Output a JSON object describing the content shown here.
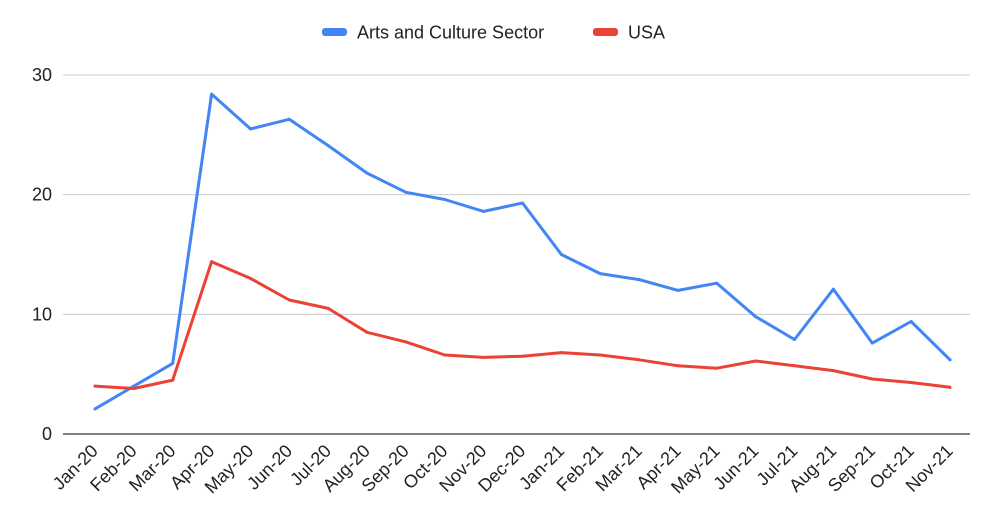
{
  "chart_data": {
    "type": "line",
    "categories": [
      "Jan-20",
      "Feb-20",
      "Mar-20",
      "Apr-20",
      "May-20",
      "Jun-20",
      "Jul-20",
      "Aug-20",
      "Sep-20",
      "Oct-20",
      "Nov-20",
      "Dec-20",
      "Jan-21",
      "Feb-21",
      "Mar-21",
      "Apr-21",
      "May-21",
      "Jun-21",
      "Jul-21",
      "Aug-21",
      "Sep-21",
      "Oct-21",
      "Nov-21"
    ],
    "series": [
      {
        "name": "Arts and Culture Sector",
        "color": "#4285f4",
        "values": [
          2.1,
          4.0,
          5.9,
          28.4,
          25.5,
          26.3,
          24.1,
          21.8,
          20.2,
          19.6,
          18.6,
          19.3,
          15.0,
          13.4,
          12.9,
          12.0,
          12.6,
          9.8,
          7.9,
          12.1,
          7.6,
          9.4,
          6.2
        ]
      },
      {
        "name": "USA",
        "color": "#ea4335",
        "values": [
          4.0,
          3.8,
          4.5,
          14.4,
          13.0,
          11.2,
          10.5,
          8.5,
          7.7,
          6.6,
          6.4,
          6.5,
          6.8,
          6.6,
          6.2,
          5.7,
          5.5,
          6.1,
          5.7,
          5.3,
          4.6,
          4.3,
          3.9
        ]
      }
    ],
    "title": "",
    "xlabel": "",
    "ylabel": "",
    "ylim": [
      0,
      30
    ],
    "yticks": [
      "0",
      "10",
      "20",
      "30"
    ],
    "grid": true,
    "legend_position": "top-center",
    "gridline_color": "#cccccc",
    "baseline_color": "#333333"
  }
}
